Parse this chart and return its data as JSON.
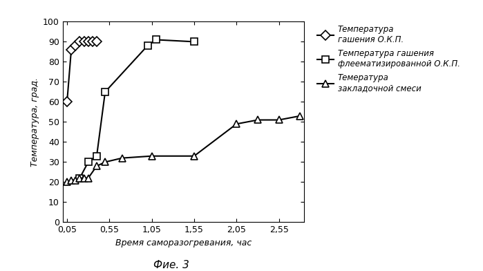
{
  "title": "Фие. 3",
  "xlabel": "Время саморазогревания, час",
  "ylabel": "Температура, град.",
  "xlim": [
    0,
    2.85
  ],
  "ylim": [
    0,
    100
  ],
  "xticks": [
    0.05,
    0.55,
    1.05,
    1.55,
    2.05,
    2.55
  ],
  "xtick_labels": [
    "0,05",
    "0,55",
    "1,05",
    "1,55",
    "2,05",
    "2,55"
  ],
  "yticks": [
    0,
    10,
    20,
    30,
    40,
    50,
    60,
    70,
    80,
    90,
    100
  ],
  "series1_x": [
    0.05,
    0.1,
    0.15,
    0.2,
    0.25,
    0.3,
    0.35,
    0.4
  ],
  "series1_y": [
    60,
    86,
    88,
    90,
    90,
    90,
    90,
    90
  ],
  "series1_label": "Температура\nгашения О.К.П.",
  "series1_marker": "D",
  "series2_x": [
    0.2,
    0.3,
    0.4,
    0.5,
    1.0,
    1.1,
    1.55
  ],
  "series2_y": [
    22,
    30,
    33,
    65,
    88,
    91,
    90
  ],
  "series2_label": "Температура гашения\nфлеематизированной О.К.П.",
  "series2_marker": "s",
  "series3_x": [
    0.05,
    0.1,
    0.15,
    0.2,
    0.25,
    0.3,
    0.4,
    0.5,
    0.7,
    1.05,
    1.55,
    2.05,
    2.3,
    2.55,
    2.8
  ],
  "series3_y": [
    20,
    21,
    21,
    22,
    22,
    22,
    28,
    30,
    32,
    33,
    33,
    49,
    51,
    51,
    53
  ],
  "series3_label": "Темература\nзакладочной смеси",
  "series3_marker": "^",
  "line_color": "black",
  "background_color": "white"
}
